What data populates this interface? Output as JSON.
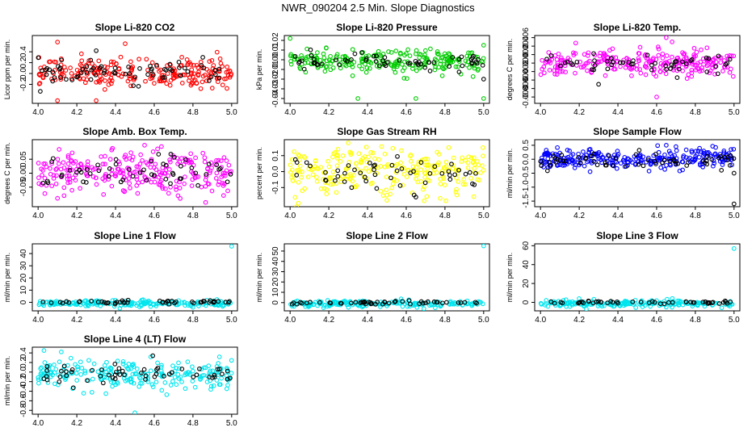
{
  "title": "NWR_090204  2.5 Min. Slope Diagnostics",
  "chart_data": [
    {
      "type": "scatter",
      "title": "Slope Li-820 CO2",
      "xlabel": "",
      "ylabel": "Licor ppm per min.",
      "xlim": [
        3.97,
        5.03
      ],
      "ylim": [
        -0.55,
        0.7
      ],
      "xticks": [
        "4.0",
        "4.2",
        "4.4",
        "4.6",
        "4.8",
        "5.0"
      ],
      "yticks": [
        "-0.2",
        "0.0",
        "0.2",
        "0.4"
      ],
      "yticks_vertical": true,
      "color": "#ff0000",
      "series": [
        {
          "name": "main",
          "color": "#ff0000",
          "n": 230,
          "center": 0.02,
          "spread": 0.13,
          "outliers": [
            [
              4.1,
              0.58
            ],
            [
              4.1,
              -0.5
            ],
            [
              4.3,
              -0.5
            ],
            [
              4.45,
              0.55
            ]
          ]
        },
        {
          "name": "highlight",
          "color": "#000000",
          "n": 70,
          "center": 0.02,
          "spread": 0.1,
          "outliers": [
            [
              4.3,
              0.42
            ]
          ]
        }
      ]
    },
    {
      "type": "scatter",
      "title": "Slope Li-820 Pressure",
      "xlabel": "",
      "ylabel": "kPa per min.",
      "xlim": [
        3.97,
        5.03
      ],
      "ylim": [
        -0.045,
        0.025
      ],
      "xticks": [
        "4.0",
        "4.2",
        "4.4",
        "4.6",
        "4.8",
        "5.0"
      ],
      "yticks": [
        "-0.04",
        "-0.03",
        "-0.02",
        "-0.01",
        "0.00",
        "0.01",
        "0.02"
      ],
      "yticks_vertical": true,
      "color": "#00cc00",
      "series": [
        {
          "name": "main",
          "color": "#00cc00",
          "n": 230,
          "center": -0.002,
          "spread": 0.006,
          "outliers": [
            [
              4.0,
              0.022
            ],
            [
              4.35,
              -0.04
            ],
            [
              4.65,
              -0.04
            ],
            [
              5.0,
              -0.04
            ],
            [
              5.0,
              0.015
            ]
          ]
        },
        {
          "name": "highlight",
          "color": "#000000",
          "n": 60,
          "center": -0.002,
          "spread": 0.004,
          "outliers": [
            [
              5.0,
              -0.02
            ]
          ]
        }
      ]
    },
    {
      "type": "scatter",
      "title": "Slope Li-820 Temp.",
      "xlabel": "",
      "ylabel": "degrees C per min.",
      "xlim": [
        3.97,
        5.03
      ],
      "ylim": [
        -0.0095,
        0.0065
      ],
      "xticks": [
        "4.0",
        "4.2",
        "4.4",
        "4.6",
        "4.8",
        "5.0"
      ],
      "yticks": [
        "-0.008",
        "-0.006",
        "-0.004",
        "-0.002",
        "0.000",
        "0.002",
        "0.004",
        "0.006"
      ],
      "yticks_vertical": true,
      "color": "#ff00ff",
      "series": [
        {
          "name": "main",
          "color": "#ff00ff",
          "n": 260,
          "center": 0.0,
          "spread": 0.0015,
          "outliers": [
            [
              4.65,
              0.006
            ],
            [
              4.68,
              0.005
            ],
            [
              4.6,
              -0.008
            ]
          ]
        },
        {
          "name": "highlight",
          "color": "#000000",
          "n": 50,
          "center": 0.0,
          "spread": 0.0012,
          "outliers": [
            [
              4.3,
              -0.005
            ]
          ]
        }
      ]
    },
    {
      "type": "scatter",
      "title": "Slope Amb. Box Temp.",
      "xlabel": "",
      "ylabel": "degrees C per min.",
      "xlim": [
        3.97,
        5.03
      ],
      "ylim": [
        -0.12,
        0.12
      ],
      "xticks": [
        "4.0",
        "4.2",
        "4.4",
        "4.6",
        "4.8",
        "5.0"
      ],
      "yticks": [
        "-0.05",
        "0.00",
        "0.05"
      ],
      "yticks_vertical": true,
      "color": "#ff00ff",
      "series": [
        {
          "name": "main",
          "color": "#ff00ff",
          "n": 260,
          "center": 0.0,
          "spread": 0.04,
          "outliers": [
            [
              4.55,
              0.1
            ],
            [
              4.1,
              -0.09
            ]
          ]
        },
        {
          "name": "highlight",
          "color": "#000000",
          "n": 55,
          "center": 0.0,
          "spread": 0.03,
          "outliers": []
        }
      ]
    },
    {
      "type": "scatter",
      "title": "Slope Gas Stream RH",
      "xlabel": "",
      "ylabel": "percent per min.",
      "xlim": [
        3.97,
        5.03
      ],
      "ylim": [
        -0.22,
        0.2
      ],
      "xticks": [
        "4.0",
        "4.2",
        "4.4",
        "4.6",
        "4.8",
        "5.0"
      ],
      "yticks": [
        "-0.1",
        "0.0",
        "0.1"
      ],
      "yticks_vertical": true,
      "color": "#ffff00",
      "series": [
        {
          "name": "main",
          "color": "#ffff00",
          "n": 250,
          "center": 0.0,
          "spread": 0.07,
          "outliers": [
            [
              4.3,
              0.18
            ],
            [
              4.5,
              -0.18
            ]
          ]
        },
        {
          "name": "highlight",
          "color": "#000000",
          "n": 50,
          "center": 0.0,
          "spread": 0.05,
          "outliers": [
            [
              4.65,
              -0.16
            ]
          ]
        }
      ]
    },
    {
      "type": "scatter",
      "title": "Slope Sample Flow",
      "xlabel": "",
      "ylabel": "ml/min per min.",
      "xlim": [
        3.97,
        5.03
      ],
      "ylim": [
        -1.7,
        0.7
      ],
      "xticks": [
        "4.0",
        "4.2",
        "4.4",
        "4.6",
        "4.8",
        "5.0"
      ],
      "yticks": [
        "-1.5",
        "-1.0",
        "-0.5",
        "0.0",
        "0.5"
      ],
      "yticks_vertical": true,
      "color": "#0000ff",
      "series": [
        {
          "name": "main",
          "color": "#0000ff",
          "n": 260,
          "center": 0.0,
          "spread": 0.18,
          "outliers": [
            [
              4.65,
              0.5
            ],
            [
              4.7,
              0.45
            ]
          ]
        },
        {
          "name": "highlight",
          "color": "#000000",
          "n": 60,
          "center": -0.05,
          "spread": 0.15,
          "outliers": [
            [
              5.0,
              -1.6
            ],
            [
              5.0,
              -0.5
            ]
          ]
        }
      ]
    },
    {
      "type": "scatter",
      "title": "Slope Line 1 Flow",
      "xlabel": "",
      "ylabel": "ml/min per min.",
      "xlim": [
        3.97,
        5.03
      ],
      "ylim": [
        -7,
        48
      ],
      "xticks": [
        "4.0",
        "4.2",
        "4.4",
        "4.6",
        "4.8",
        "5.0"
      ],
      "yticks": [
        "0",
        "10",
        "20",
        "30",
        "40"
      ],
      "yticks_vertical": true,
      "color": "#00e5ee",
      "series": [
        {
          "name": "main",
          "color": "#00e5ee",
          "n": 200,
          "center": -1.0,
          "spread": 1.3,
          "outliers": [
            [
              5.0,
              46
            ],
            [
              4.8,
              -4
            ]
          ]
        },
        {
          "name": "highlight",
          "color": "#000000",
          "n": 50,
          "center": 0.0,
          "spread": 0.7,
          "outliers": []
        }
      ]
    },
    {
      "type": "scatter",
      "title": "Slope Line 2 Flow",
      "xlabel": "",
      "ylabel": "ml/min per min.",
      "xlim": [
        3.97,
        5.03
      ],
      "ylim": [
        -8,
        57
      ],
      "xticks": [
        "4.0",
        "4.2",
        "4.4",
        "4.6",
        "4.8",
        "5.0"
      ],
      "yticks": [
        "0",
        "10",
        "20",
        "30",
        "40",
        "50"
      ],
      "yticks_vertical": true,
      "color": "#00e5ee",
      "series": [
        {
          "name": "main",
          "color": "#00e5ee",
          "n": 200,
          "center": -1.0,
          "spread": 1.5,
          "outliers": [
            [
              5.0,
              55
            ],
            [
              4.75,
              -5
            ]
          ]
        },
        {
          "name": "highlight",
          "color": "#000000",
          "n": 50,
          "center": 0.0,
          "spread": 0.8,
          "outliers": []
        }
      ]
    },
    {
      "type": "scatter",
      "title": "Slope Line 3 Flow",
      "xlabel": "",
      "ylabel": "ml/min per min.",
      "xlim": [
        3.97,
        5.03
      ],
      "ylim": [
        -9,
        62
      ],
      "xticks": [
        "4.0",
        "4.2",
        "4.4",
        "4.6",
        "4.8",
        "5.0"
      ],
      "yticks": [
        "0",
        "20",
        "40",
        "60"
      ],
      "yticks_vertical": true,
      "color": "#00e5ee",
      "series": [
        {
          "name": "main",
          "color": "#00e5ee",
          "n": 200,
          "center": -1.0,
          "spread": 1.8,
          "outliers": [
            [
              5.0,
              57
            ],
            [
              4.65,
              -5
            ]
          ]
        },
        {
          "name": "highlight",
          "color": "#000000",
          "n": 50,
          "center": 0.0,
          "spread": 1.0,
          "outliers": []
        }
      ]
    },
    {
      "type": "scatter",
      "title": "Slope Line 4 (LT) Flow",
      "xlabel": "",
      "ylabel": "ml/min per min.",
      "xlim": [
        3.97,
        5.03
      ],
      "ylim": [
        -0.88,
        0.52
      ],
      "xticks": [
        "4.0",
        "4.2",
        "4.4",
        "4.6",
        "4.8",
        "5.0"
      ],
      "yticks": [
        "-0.8",
        "-0.6",
        "-0.4",
        "-0.2",
        "0.0",
        "0.2",
        "0.4"
      ],
      "yticks_vertical": true,
      "color": "#00e5ee",
      "series": [
        {
          "name": "main",
          "color": "#00e5ee",
          "n": 230,
          "center": -0.05,
          "spread": 0.14,
          "outliers": [
            [
              4.5,
              -0.85
            ],
            [
              4.03,
              0.45
            ],
            [
              4.12,
              0.42
            ],
            [
              4.35,
              -0.45
            ]
          ]
        },
        {
          "name": "highlight",
          "color": "#000000",
          "n": 55,
          "center": -0.05,
          "spread": 0.11,
          "outliers": []
        }
      ]
    }
  ]
}
